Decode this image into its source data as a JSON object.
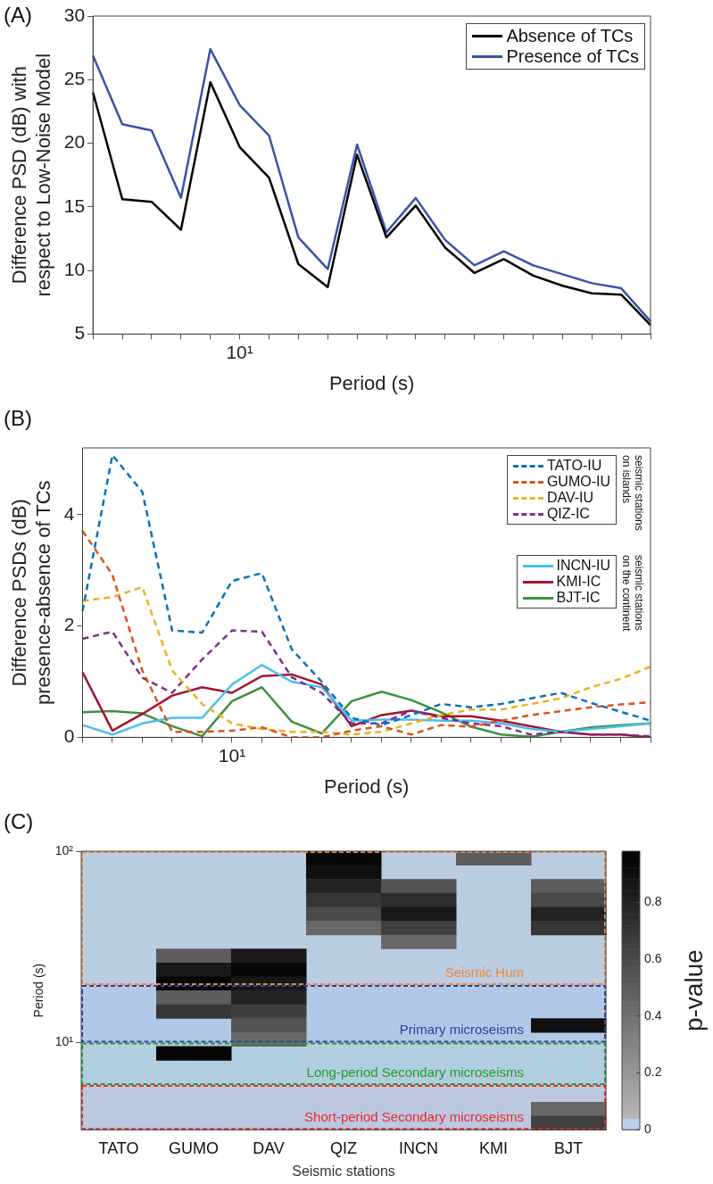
{
  "chart_data": [
    {
      "type": "line",
      "title": "(A)",
      "xlabel": "Period (s)",
      "ylabel": "Difference PSD (dB) with respect to Low-Noise Model",
      "categories": [
        null,
        null,
        null,
        null,
        null,
        "10¹",
        null,
        null,
        null,
        null,
        null,
        null,
        null,
        null,
        null,
        null,
        null,
        null,
        null,
        null
      ],
      "series": [
        {
          "name": "Absence of TCs",
          "color": "#000000",
          "values": [
            24.0,
            15.6,
            15.4,
            13.2,
            24.8,
            19.7,
            17.3,
            10.5,
            8.7,
            19.1,
            12.6,
            15.1,
            11.8,
            9.8,
            10.9,
            9.6,
            8.8,
            8.2,
            8.1,
            5.7
          ]
        },
        {
          "name": "Presence of TCs",
          "color": "#3a52a8",
          "values": [
            26.9,
            21.5,
            21.0,
            15.7,
            27.4,
            23.0,
            20.6,
            12.6,
            10.1,
            19.9,
            13.0,
            15.7,
            12.4,
            10.4,
            11.5,
            10.4,
            9.7,
            9.0,
            8.6,
            6.0
          ]
        }
      ],
      "ylim": [
        5,
        30
      ],
      "yticks": [
        5,
        10,
        15,
        20,
        25,
        30
      ],
      "legend": "top right"
    },
    {
      "type": "line",
      "title": "(B)",
      "xlabel": "Period (s)",
      "ylabel": "Difference PSDs (dB) presence-absence of TCs",
      "categories": [
        null,
        null,
        null,
        null,
        null,
        "10¹",
        null,
        null,
        null,
        null,
        null,
        null,
        null,
        null,
        null,
        null,
        null,
        null,
        null,
        null
      ],
      "series": [
        {
          "name": "TATO-IU",
          "color": "#0072bd",
          "line_style": "dashed",
          "values": [
            2.27,
            5.07,
            4.41,
            1.92,
            1.88,
            2.81,
            2.95,
            1.58,
            1.0,
            0.35,
            0.22,
            0.4,
            0.6,
            0.54,
            0.6,
            0.7,
            0.8,
            0.62,
            0.46,
            0.3
          ]
        },
        {
          "name": "GUMO-IU",
          "color": "#d95319",
          "line_style": "dashed",
          "values": [
            3.71,
            2.92,
            1.2,
            0.1,
            0.1,
            0.12,
            0.18,
            0.0,
            0.0,
            0.12,
            0.2,
            0.05,
            0.22,
            0.19,
            0.3,
            0.4,
            0.47,
            0.54,
            0.59,
            0.63
          ]
        },
        {
          "name": "DAV-IU",
          "color": "#edb120",
          "line_style": "dashed",
          "values": [
            2.45,
            2.52,
            2.7,
            1.2,
            0.6,
            0.25,
            0.15,
            0.1,
            0.1,
            0.05,
            0.1,
            0.25,
            0.4,
            0.5,
            0.5,
            0.6,
            0.7,
            0.9,
            1.05,
            1.27
          ]
        },
        {
          "name": "QIZ-IC",
          "color": "#7e2f8e",
          "line_style": "dashed",
          "values": [
            1.77,
            1.9,
            1.07,
            0.8,
            1.4,
            1.92,
            1.9,
            1.08,
            0.8,
            0.25,
            0.25,
            0.48,
            0.35,
            0.25,
            0.2,
            0.05,
            0.1,
            0.05,
            0.05,
            0.02
          ]
        },
        {
          "name": "INCN-IU",
          "color": "#4dbeee",
          "line_style": "solid",
          "values": [
            0.22,
            0.05,
            0.25,
            0.35,
            0.35,
            0.95,
            1.3,
            1.0,
            0.9,
            0.3,
            0.32,
            0.32,
            0.3,
            0.3,
            0.25,
            0.15,
            0.1,
            0.15,
            0.2,
            0.25
          ]
        },
        {
          "name": "KMI-IC",
          "color": "#a2142f",
          "line_style": "solid",
          "values": [
            1.17,
            0.12,
            0.42,
            0.75,
            0.9,
            0.8,
            1.1,
            1.13,
            0.95,
            0.2,
            0.4,
            0.48,
            0.38,
            0.38,
            0.3,
            0.2,
            0.1,
            0.05,
            0.05,
            0
          ]
        },
        {
          "name": "BJT-IC",
          "color": "#3d9140",
          "line_style": "solid",
          "values": [
            0.45,
            0.47,
            0.43,
            0.2,
            0.02,
            0.65,
            0.9,
            0.28,
            0.07,
            0.65,
            0.82,
            0.67,
            0.45,
            0.19,
            0.05,
            0.01,
            0.1,
            0.18,
            0.22,
            0.25
          ]
        }
      ],
      "ylim": [
        0,
        5.2
      ],
      "yticks": [
        0,
        2,
        4
      ],
      "legend": "top right",
      "annotations": [
        "seismic stations on islands",
        "seismic stations on the continent"
      ]
    },
    {
      "type": "heatmap",
      "title": "(C)",
      "xlabel": "Seismic stations",
      "ylabel": "Period (s)",
      "clabel": "p-value",
      "log": "y",
      "categories": [
        "TATO",
        "GUMO",
        "DAV",
        "QIZ",
        "INCN",
        "KMI",
        "BJT"
      ],
      "cells": [
        [
          0,
          0,
          0,
          0.95,
          0,
          0.5,
          0
        ],
        [
          0,
          0,
          0,
          0.9,
          0,
          0,
          0
        ],
        [
          0,
          0,
          0,
          0.8,
          0.55,
          0,
          0.5
        ],
        [
          0,
          0,
          0,
          0.7,
          0.75,
          0,
          0.6
        ],
        [
          0,
          0,
          0,
          0.6,
          0.85,
          0,
          0.8
        ],
        [
          0,
          0,
          0,
          0.45,
          0.65,
          0,
          0.7
        ],
        [
          0,
          0,
          0,
          0,
          0.45,
          0,
          0
        ],
        [
          0,
          0.5,
          0.85,
          0,
          0,
          0,
          0
        ],
        [
          0,
          0.85,
          0.95,
          0,
          0,
          0,
          0
        ],
        [
          0,
          0.95,
          0.85,
          0,
          0,
          0,
          0
        ],
        [
          0,
          0.5,
          0.8,
          0,
          0,
          0,
          0
        ],
        [
          0,
          0.7,
          0.65,
          0,
          0,
          0,
          0
        ],
        [
          0,
          0,
          0.55,
          0,
          0,
          0,
          0.9
        ],
        [
          0,
          0,
          0.45,
          0,
          0,
          0,
          0
        ],
        [
          0,
          0.95,
          0,
          0,
          0,
          0,
          0
        ],
        [
          0,
          0,
          0,
          0,
          0,
          0,
          0
        ],
        [
          0,
          0,
          0,
          0,
          0,
          0,
          0
        ],
        [
          0,
          0,
          0,
          0,
          0,
          0,
          0
        ],
        [
          0,
          0,
          0,
          0,
          0,
          0,
          0.45
        ],
        [
          0,
          0,
          0,
          0,
          0,
          0,
          0.65
        ]
      ],
      "ylim": [
        3.5,
        100
      ],
      "yticks": [
        {
          "value": 10,
          "label": "10¹"
        },
        {
          "value": 100,
          "label": "10²"
        }
      ],
      "clim": [
        0,
        0.98
      ],
      "cticks": [
        0,
        0.2,
        0.4,
        0.6,
        0.8
      ],
      "bands": [
        {
          "axis": "y",
          "from": 20,
          "to": 100,
          "label": "Seismic Hum",
          "color": "#f0883a"
        },
        {
          "axis": "y",
          "from": 10,
          "to": 20,
          "label": "Primary microseisms",
          "color": "#2f3fa0"
        },
        {
          "axis": "y",
          "from": 6,
          "to": 10,
          "label": "Long-period Secondary microseisms",
          "color": "#2a9a2a"
        },
        {
          "axis": "y",
          "from": 3.5,
          "to": 6,
          "label": "Short-period Secondary microseisms",
          "color": "#ee2a2a"
        }
      ]
    }
  ]
}
